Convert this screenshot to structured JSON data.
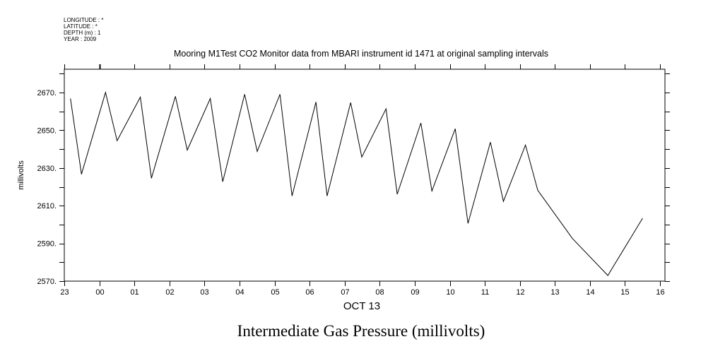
{
  "header": {
    "meta": [
      "LONGITUDE : *",
      "LATITUDE : *",
      "DEPTH (m) : 1",
      "YEAR : 2009"
    ]
  },
  "chart_data": {
    "type": "line",
    "title": "Mooring M1Test CO2 Monitor data from MBARI instrument id 1471 at original sampling intervals",
    "xlabel": "OCT 13",
    "ylabel": "millivolts",
    "bottom_title": "Intermediate Gas Pressure (millivolts)",
    "x_units": "hours relative to Oct 13 00:00",
    "xlim": [
      -1,
      16.14
    ],
    "ylim": [
      2570,
      2682.4
    ],
    "x_ticks": [
      -1,
      0,
      1,
      2,
      3,
      4,
      5,
      6,
      7,
      8,
      9,
      10,
      11,
      12,
      13,
      14,
      15,
      16
    ],
    "x_tick_labels": [
      "23",
      "00",
      "01",
      "02",
      "03",
      "04",
      "05",
      "06",
      "07",
      "08",
      "09",
      "10",
      "11",
      "12",
      "13",
      "14",
      "15",
      "16"
    ],
    "y_ticks": [
      2570,
      2590,
      2610,
      2630,
      2650,
      2670
    ],
    "y_tick_labels": [
      "2570.",
      "2590.",
      "2610.",
      "2630.",
      "2650.",
      "2670."
    ],
    "y_minor_step": 10,
    "grid": false,
    "line_color": "#000000",
    "series": [
      {
        "name": "Intermediate Gas Pressure",
        "x": [
          -0.825,
          -0.51,
          0.175,
          0.506,
          1.17,
          1.486,
          2.17,
          2.508,
          3.167,
          3.52,
          4.147,
          4.504,
          5.155,
          5.5,
          6.18,
          6.5,
          7.17,
          7.49,
          8.18,
          8.5,
          9.175,
          9.49,
          10.155,
          10.52,
          11.16,
          11.53,
          12.16,
          12.51,
          13.5,
          14.51,
          15.5
        ],
        "y": [
          2666.9,
          2626.7,
          2670.1,
          2644.5,
          2667.6,
          2624.6,
          2668.0,
          2639.5,
          2666.9,
          2622.7,
          2669.1,
          2638.8,
          2669.1,
          2615.2,
          2665.0,
          2615.2,
          2664.7,
          2635.8,
          2661.4,
          2616.1,
          2653.9,
          2617.8,
          2650.8,
          2600.6,
          2643.7,
          2612.3,
          2642.2,
          2618.2,
          2592.6,
          2573.0,
          2603.3
        ]
      }
    ]
  }
}
